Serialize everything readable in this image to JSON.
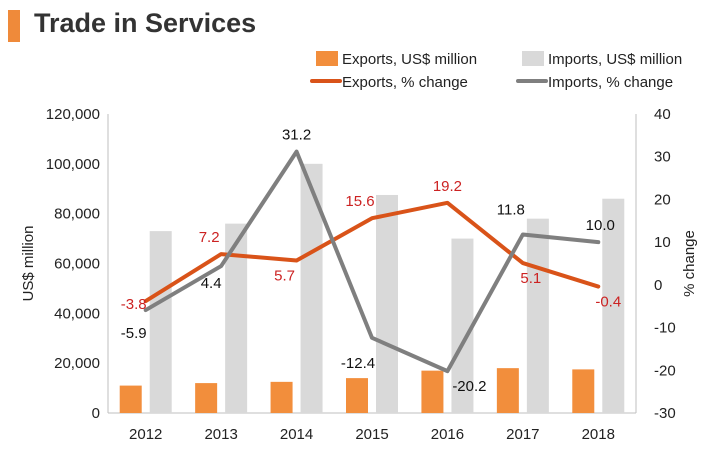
{
  "title": "Trade in Services",
  "colors": {
    "accent": "#ef8a3a",
    "exports_bar": "#f28e3c",
    "imports_bar": "#d9d9d9",
    "exports_line": "#d95319",
    "imports_line": "#7f7f7f",
    "export_label": "#cc2222",
    "text": "#222222"
  },
  "chart_data": {
    "type": "bar",
    "title": "Trade in Services",
    "categories": [
      "2012",
      "2013",
      "2014",
      "2015",
      "2016",
      "2017",
      "2018"
    ],
    "xlabel": "",
    "ylabel": "US$ million",
    "ylabel_right": "% change",
    "ylim": [
      0,
      120000
    ],
    "ylim_right": [
      -30,
      40
    ],
    "yticks": [
      "0",
      "20,000",
      "40,000",
      "60,000",
      "80,000",
      "100,000",
      "120,000"
    ],
    "yticks_right": [
      "-30",
      "-20",
      "-10",
      "0",
      "10",
      "20",
      "30",
      "40"
    ],
    "grid": false,
    "legend_position": "top-right",
    "series": [
      {
        "name": "Exports, US$ million",
        "type": "bar",
        "axis": "left",
        "values": [
          11000,
          12000,
          12500,
          14000,
          17000,
          18000,
          17500
        ]
      },
      {
        "name": "Imports, US$ million",
        "type": "bar",
        "axis": "left",
        "values": [
          73000,
          76000,
          100000,
          87500,
          70000,
          78000,
          86000
        ]
      },
      {
        "name": "Exports, % change",
        "type": "line",
        "axis": "right",
        "values": [
          -3.8,
          7.2,
          5.7,
          15.6,
          19.2,
          5.1,
          -0.4
        ],
        "labels": [
          "-3.8",
          "7.2",
          "5.7",
          "15.6",
          "19.2",
          "5.1",
          "-0.4"
        ]
      },
      {
        "name": "Imports, % change",
        "type": "line",
        "axis": "right",
        "values": [
          -5.9,
          4.4,
          31.2,
          -12.4,
          -20.2,
          11.8,
          10.0
        ],
        "labels": [
          "-5.9",
          "4.4",
          "31.2",
          "-12.4",
          "-20.2",
          "11.8",
          "10.0"
        ]
      }
    ]
  }
}
